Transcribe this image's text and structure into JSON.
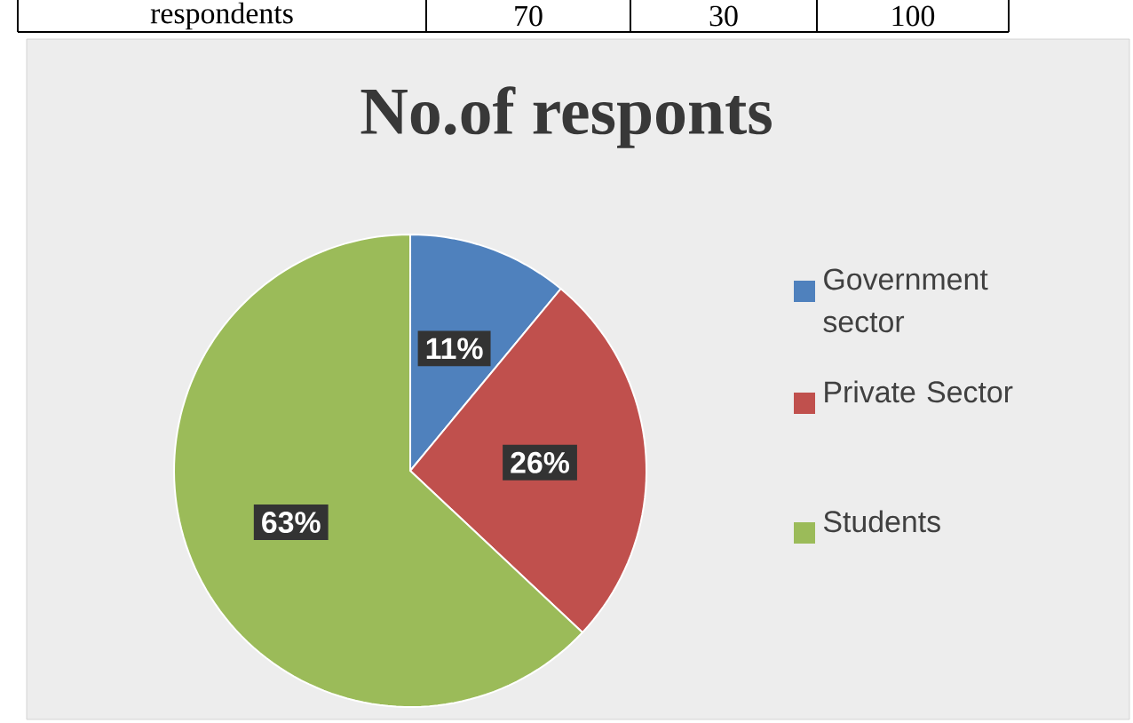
{
  "chart_data": {
    "type": "pie",
    "title": "No.of responts",
    "categories": [
      "Government sector",
      "Private Sector",
      "Students"
    ],
    "values": [
      11,
      26,
      63
    ],
    "colors": [
      "#4f81bd",
      "#c0504d",
      "#9bbb59"
    ],
    "value_labels": [
      "11%",
      "26%",
      "63%"
    ],
    "legend": "right",
    "annotations": [
      "respondents",
      "70",
      "30",
      "100"
    ]
  }
}
